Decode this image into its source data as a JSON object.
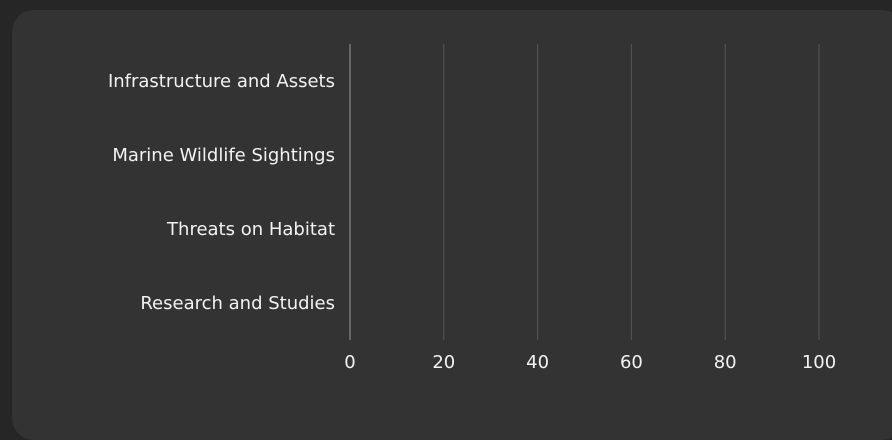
{
  "chart_data": {
    "type": "bar",
    "orientation": "horizontal",
    "categories": [
      "Infrastructure and Assets",
      "Marine Wildlife Sightings",
      "Threats on Habitat",
      "Research and Studies"
    ],
    "values": [
      0,
      0,
      0,
      0
    ],
    "x_ticks": [
      "0",
      "20",
      "40",
      "60",
      "80",
      "100"
    ],
    "xlim": [
      0,
      100
    ],
    "grid": true,
    "legend": "none",
    "colors": {
      "background": "#262626",
      "panel": "#333333",
      "grid": "#575757",
      "axis": "#9a9a9a",
      "text": "#f2f2f2",
      "bar": "#4a90e2"
    }
  }
}
